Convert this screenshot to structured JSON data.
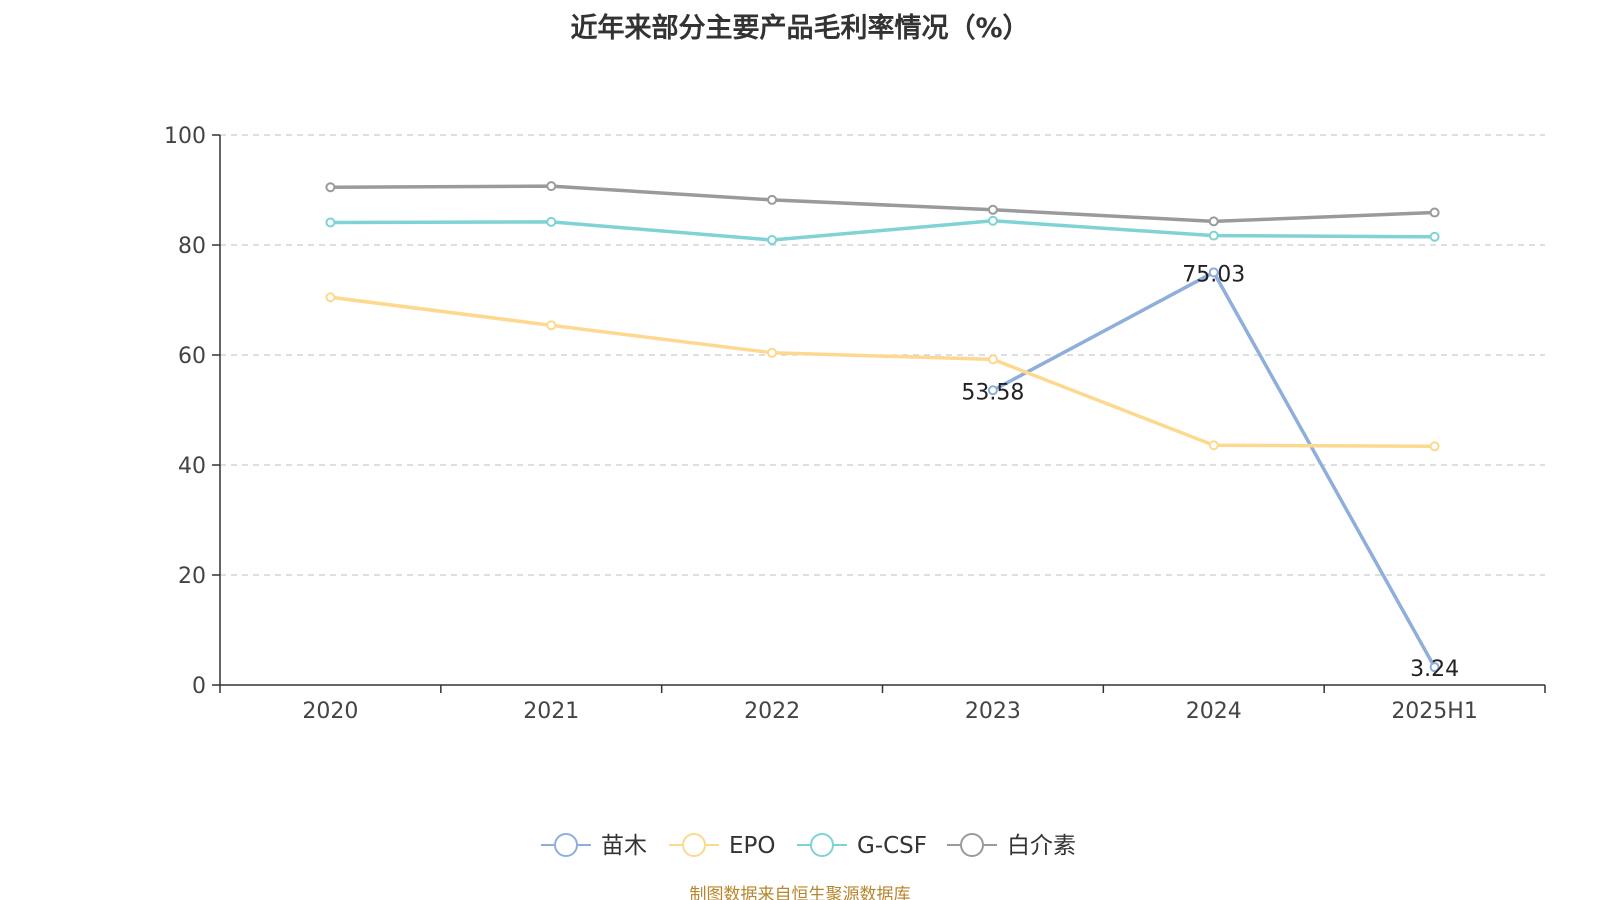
{
  "chart_data": {
    "type": "line",
    "title": "近年来部分主要产品毛利率情况（%）",
    "xlabel": "",
    "ylabel": "",
    "categories": [
      "2020",
      "2021",
      "2022",
      "2023",
      "2024",
      "2025H1"
    ],
    "ylim": [
      0,
      100
    ],
    "yticks": [
      0,
      20,
      40,
      60,
      80,
      100
    ],
    "grid": true,
    "legend_position": "bottom",
    "series": [
      {
        "name": "苗木",
        "color": "#8eaedc",
        "values": [
          null,
          null,
          null,
          53.58,
          75.03,
          3.24
        ],
        "labels": [
          "",
          "",
          "",
          "53.58",
          "75.03",
          "3.24"
        ]
      },
      {
        "name": "EPO",
        "color": "#fcd98f",
        "values": [
          70.5,
          65.4,
          60.4,
          59.2,
          43.6,
          43.4
        ],
        "labels": [
          "",
          "",
          "",
          "",
          "",
          ""
        ]
      },
      {
        "name": "G-CSF",
        "color": "#7fd3d4",
        "values": [
          84.1,
          84.2,
          80.9,
          84.4,
          81.7,
          81.5
        ],
        "labels": [
          "",
          "",
          "",
          "",
          "",
          ""
        ]
      },
      {
        "name": "白介素",
        "color": "#9a9a9a",
        "values": [
          90.5,
          90.7,
          88.2,
          86.4,
          84.3,
          85.9
        ],
        "labels": [
          "",
          "",
          "",
          "",
          "",
          ""
        ]
      }
    ]
  },
  "footer": {
    "source": "制图数据来自恒生聚源数据库"
  }
}
